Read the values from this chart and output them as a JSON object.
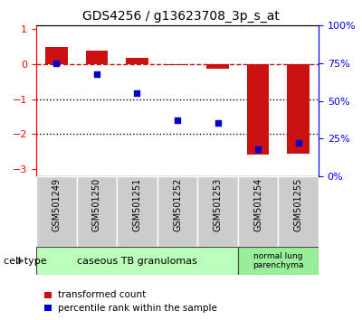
{
  "title": "GDS4256 / g13623708_3p_s_at",
  "samples": [
    "GSM501249",
    "GSM501250",
    "GSM501251",
    "GSM501252",
    "GSM501253",
    "GSM501254",
    "GSM501255"
  ],
  "transformed_count": [
    0.5,
    0.38,
    0.18,
    -0.02,
    -0.12,
    -2.6,
    -2.55
  ],
  "percentile_rank": [
    75,
    68,
    55,
    37,
    35,
    18,
    22
  ],
  "left_ylim": [
    -3.2,
    1.1
  ],
  "right_ylim": [
    0,
    100
  ],
  "left_yticks": [
    -3,
    -2,
    -1,
    0,
    1
  ],
  "right_yticks": [
    0,
    25,
    50,
    75,
    100
  ],
  "right_yticklabels": [
    "0%",
    "25%",
    "50%",
    "75%",
    "100%"
  ],
  "bar_color": "#cc1111",
  "dot_color": "#0000cc",
  "dotted_lines": [
    -1,
    -2
  ],
  "cell_type_groups": [
    {
      "label": "caseous TB granulomas",
      "samples": [
        0,
        1,
        2,
        3,
        4
      ],
      "color": "#bbffbb"
    },
    {
      "label": "normal lung\nparenchyma",
      "samples": [
        5,
        6
      ],
      "color": "#99ee99"
    }
  ],
  "legend_items": [
    {
      "label": "transformed count",
      "color": "#cc1111"
    },
    {
      "label": "percentile rank within the sample",
      "color": "#0000cc"
    }
  ],
  "cell_type_label": "cell type",
  "bar_width": 0.55,
  "figsize": [
    4.0,
    3.54
  ],
  "dpi": 100,
  "background_color": "#ffffff"
}
